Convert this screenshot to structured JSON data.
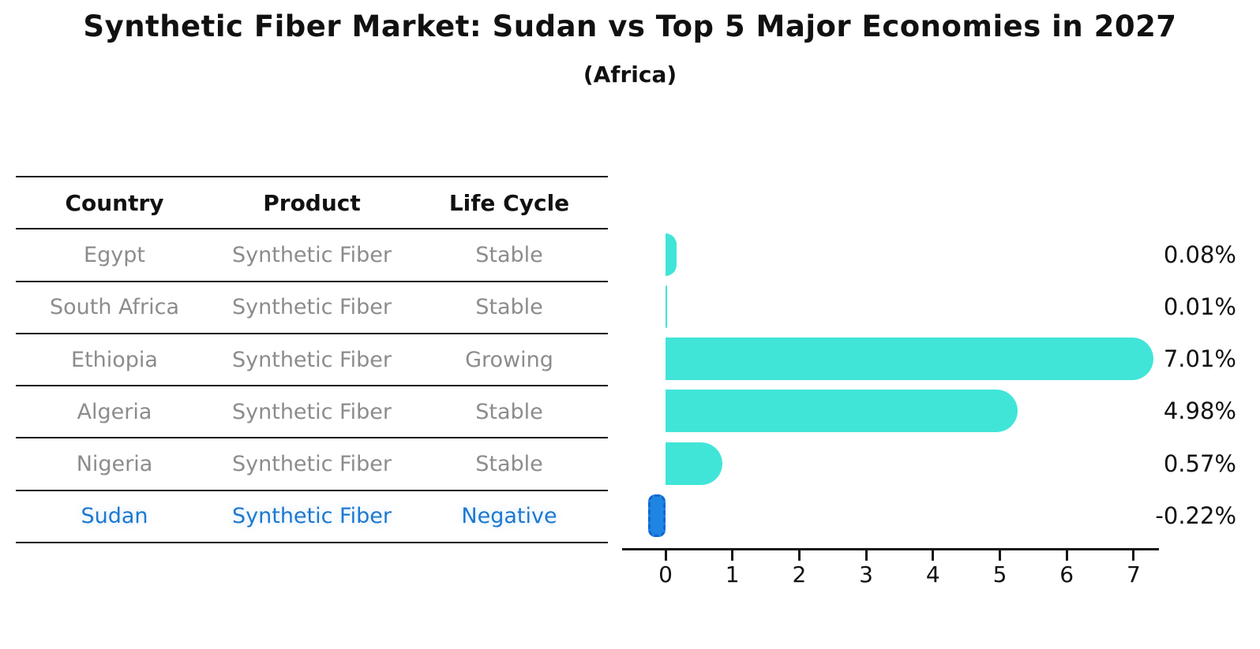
{
  "title": "Synthetic Fiber Market: Sudan vs Top 5 Major Economies in 2027",
  "subtitle": "(Africa)",
  "table": {
    "headers": [
      "Country",
      "Product",
      "Life Cycle"
    ],
    "rows": [
      {
        "country": "Egypt",
        "product": "Synthetic Fiber",
        "life_cycle": "Stable",
        "highlight": false
      },
      {
        "country": "South Africa",
        "product": "Synthetic Fiber",
        "life_cycle": "Stable",
        "highlight": false
      },
      {
        "country": "Ethiopia",
        "product": "Synthetic Fiber",
        "life_cycle": "Growing",
        "highlight": false
      },
      {
        "country": "Algeria",
        "product": "Synthetic Fiber",
        "life_cycle": "Stable",
        "highlight": false
      },
      {
        "country": "Nigeria",
        "product": "Synthetic Fiber",
        "life_cycle": "Stable",
        "highlight": false
      },
      {
        "country": "Sudan",
        "product": "Synthetic Fiber",
        "life_cycle": "Negative",
        "highlight": true
      }
    ]
  },
  "chart_data": {
    "type": "bar",
    "orientation": "horizontal",
    "categories": [
      "Egypt",
      "South Africa",
      "Ethiopia",
      "Algeria",
      "Nigeria",
      "Sudan"
    ],
    "values": [
      0.08,
      0.01,
      7.01,
      4.98,
      0.57,
      -0.22
    ],
    "value_labels": [
      "0.08%",
      "0.01%",
      "7.01%",
      "4.98%",
      "0.57%",
      "-0.22%"
    ],
    "xlabel": "",
    "ylabel": "",
    "xticks": [
      0,
      1,
      2,
      3,
      4,
      5,
      6,
      7
    ],
    "xlim": [
      -0.65,
      7.4
    ],
    "grid": false,
    "legend": "none",
    "highlight_index": 5,
    "bar_color": "#40e5d8",
    "highlight_fill": "#1e85e2",
    "highlight_border": "#1466d0",
    "text_color": "#111111",
    "muted_text_color": "#8c8c8c",
    "highlight_text_color": "#1d78cf"
  },
  "layout_numbers": {}
}
